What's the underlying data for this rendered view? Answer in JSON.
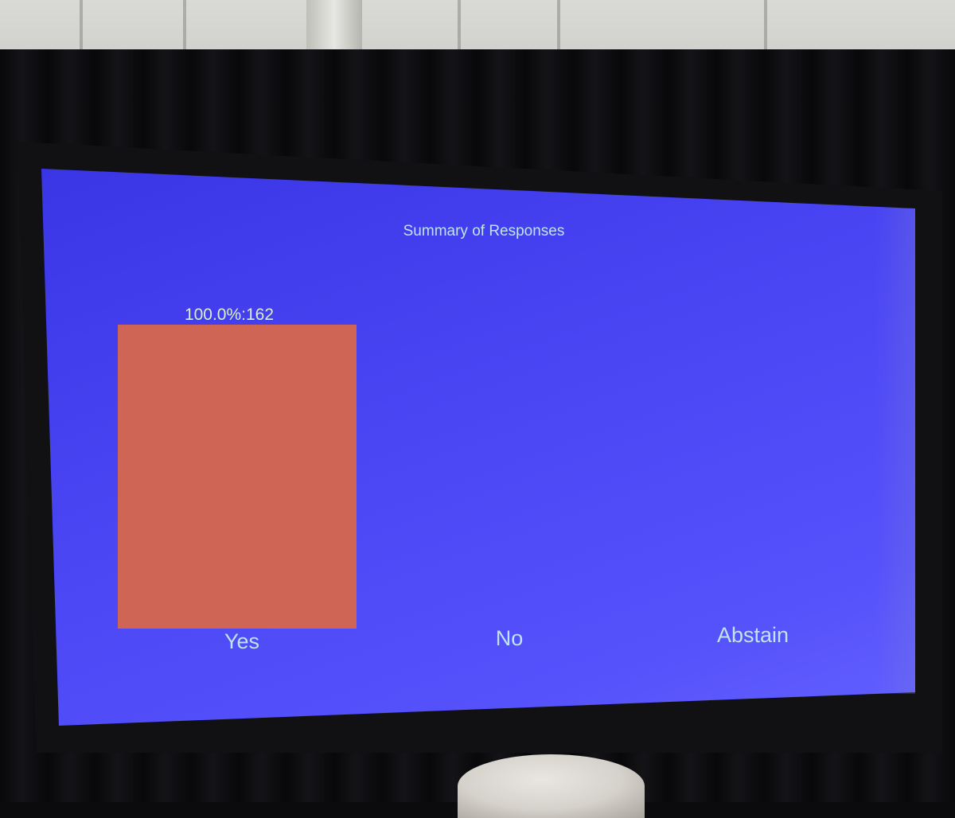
{
  "chart_data": {
    "type": "bar",
    "title": "Summary of Responses",
    "categories": [
      "Yes",
      "No",
      "Abstain"
    ],
    "values": [
      162,
      0,
      0
    ],
    "data_labels": [
      "100.0%:162",
      "",
      ""
    ],
    "ylim": [
      0,
      162
    ],
    "xlabel": "",
    "ylabel": "",
    "grid": false,
    "colors": {
      "bar": "#cf6655",
      "label_text": "#d8f0c8",
      "category_text": "#bfe4ec",
      "title_text": "#bfe4ec"
    }
  }
}
